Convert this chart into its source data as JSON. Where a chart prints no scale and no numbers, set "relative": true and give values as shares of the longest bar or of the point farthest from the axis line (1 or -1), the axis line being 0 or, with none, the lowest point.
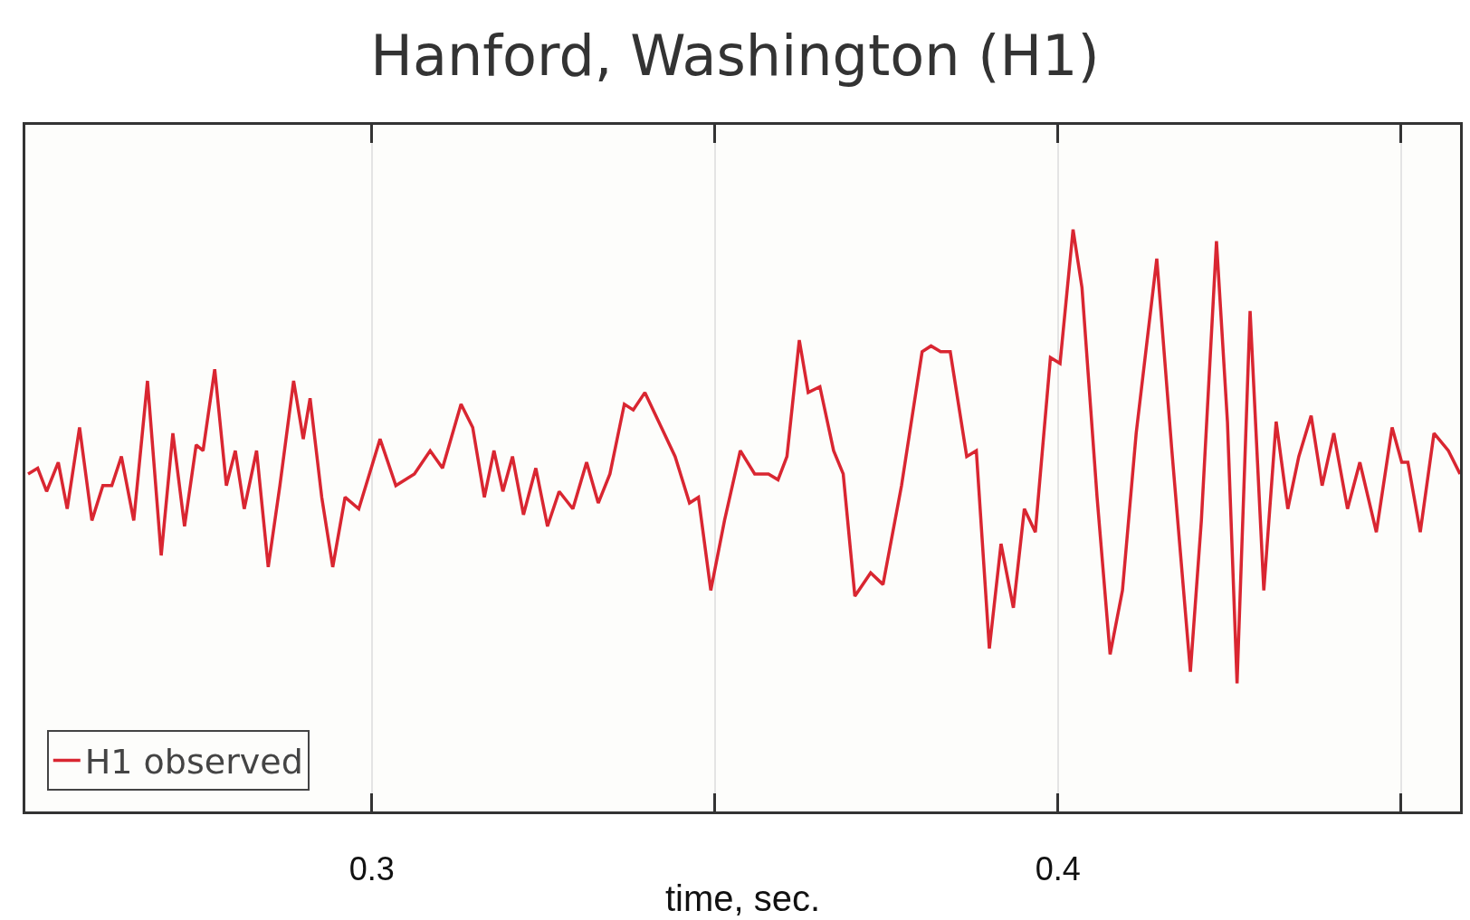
{
  "chart_data": {
    "type": "line",
    "title": "Hanford, Washington (H1)",
    "xlabel": "time, sec.",
    "relative": true,
    "xlim": [
      0.2495,
      0.4586
    ],
    "xticks": [
      0.3,
      {
        "value": 0.35,
        "label": null
      },
      0.4,
      {
        "value": 0.45,
        "label": null
      }
    ],
    "grid": "x",
    "legend": "bottom left",
    "marker": "none",
    "line_style": "solid",
    "series": [
      {
        "name": "H1 observed",
        "color": "#d92631",
        "x": [
          0.2499,
          0.2513,
          0.2526,
          0.2543,
          0.2556,
          0.2574,
          0.2592,
          0.2608,
          0.2621,
          0.2635,
          0.2653,
          0.2673,
          0.2693,
          0.271,
          0.2727,
          0.2744,
          0.2754,
          0.2771,
          0.2788,
          0.2801,
          0.2814,
          0.2832,
          0.2849,
          0.2866,
          0.2886,
          0.29,
          0.291,
          0.2927,
          0.2943,
          0.2961,
          0.2981,
          0.3012,
          0.3035,
          0.3062,
          0.3085,
          0.3103,
          0.313,
          0.3147,
          0.3164,
          0.3178,
          0.3191,
          0.3205,
          0.3221,
          0.3239,
          0.3256,
          0.3273,
          0.3293,
          0.3313,
          0.333,
          0.3347,
          0.3368,
          0.3381,
          0.3398,
          0.3422,
          0.3442,
          0.3463,
          0.3476,
          0.3494,
          0.3514,
          0.3537,
          0.3558,
          0.3578,
          0.3592,
          0.3605,
          0.3623,
          0.3636,
          0.3653,
          0.3673,
          0.3687,
          0.3704,
          0.3727,
          0.3745,
          0.3772,
          0.3802,
          0.3815,
          0.3829,
          0.3843,
          0.3867,
          0.3881,
          0.39,
          0.3917,
          0.3935,
          0.3951,
          0.3967,
          0.3989,
          0.4003,
          0.4022,
          0.4035,
          0.4057,
          0.4076,
          0.4094,
          0.4114,
          0.4144,
          0.4166,
          0.4193,
          0.4209,
          0.4231,
          0.4247,
          0.4261,
          0.428,
          0.43,
          0.4318,
          0.4335,
          0.4351,
          0.4369,
          0.4385,
          0.4402,
          0.4422,
          0.444,
          0.4464,
          0.4487,
          0.4501,
          0.451,
          0.4528,
          0.4548,
          0.4569,
          0.4586
        ],
        "values": [
          0.58,
          0.59,
          0.55,
          0.6,
          0.52,
          0.66,
          0.5,
          0.56,
          0.56,
          0.61,
          0.5,
          0.74,
          0.44,
          0.65,
          0.49,
          0.63,
          0.62,
          0.76,
          0.56,
          0.62,
          0.52,
          0.62,
          0.42,
          0.56,
          0.74,
          0.64,
          0.71,
          0.54,
          0.42,
          0.54,
          0.52,
          0.64,
          0.56,
          0.58,
          0.62,
          0.59,
          0.7,
          0.66,
          0.54,
          0.62,
          0.55,
          0.61,
          0.51,
          0.59,
          0.49,
          0.55,
          0.52,
          0.6,
          0.53,
          0.58,
          0.7,
          0.69,
          0.72,
          0.66,
          0.61,
          0.53,
          0.54,
          0.38,
          0.5,
          0.62,
          0.58,
          0.58,
          0.57,
          0.61,
          0.81,
          0.72,
          0.73,
          0.62,
          0.58,
          0.37,
          0.41,
          0.39,
          0.56,
          0.79,
          0.8,
          0.79,
          0.79,
          0.61,
          0.62,
          0.28,
          0.46,
          0.35,
          0.52,
          0.48,
          0.78,
          0.77,
          1,
          0.9,
          0.54,
          0.27,
          0.38,
          0.65,
          0.95,
          0.62,
          0.24,
          0.5,
          0.98,
          0.67,
          0.22,
          0.86,
          0.38,
          0.67,
          0.52,
          0.61,
          0.68,
          0.56,
          0.65,
          0.52,
          0.6,
          0.48,
          0.66,
          0.6,
          0.6,
          0.48,
          0.65,
          0.62,
          0.58
        ]
      }
    ]
  }
}
